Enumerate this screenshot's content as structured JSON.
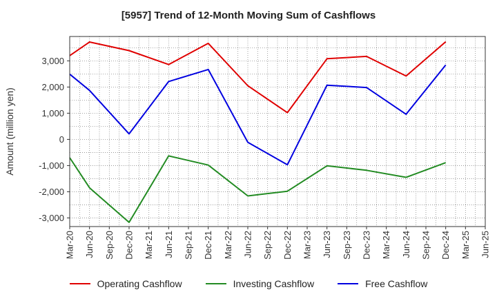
{
  "chart_data": {
    "type": "line",
    "title": "[5957]  Trend of 12-Month Moving Sum of Cashflows",
    "ylabel": "Amount (million yen)",
    "xlabel": "",
    "x": [
      "Mar-20",
      "Jun-20",
      "Sep-20",
      "Dec-20",
      "Mar-21",
      "Jun-21",
      "Sep-21",
      "Dec-21",
      "Mar-22",
      "Jun-22",
      "Sep-22",
      "Dec-22",
      "Mar-23",
      "Jun-23",
      "Sep-23",
      "Dec-23",
      "Mar-24",
      "Jun-24",
      "Sep-24",
      "Dec-24",
      "Mar-25",
      "Jun-25"
    ],
    "yticks": [
      3000,
      2000,
      1000,
      0,
      -1000,
      -2000,
      -3000
    ],
    "ytick_labels": [
      "3,000",
      "2,000",
      "1,000",
      "0",
      "-1,000",
      "-2,000",
      "-3,000"
    ],
    "ylim": [
      -3330,
      3930
    ],
    "grid": true,
    "legend_position": "bottom",
    "series": [
      {
        "name": "Operating Cashflow",
        "color": "#e00000",
        "values": [
          3200,
          3720,
          null,
          3390,
          null,
          2860,
          null,
          3670,
          null,
          2050,
          null,
          1020,
          null,
          3080,
          null,
          3170,
          null,
          2420,
          null,
          3730,
          null,
          null
        ]
      },
      {
        "name": "Investing Cashflow",
        "color": "#228b22",
        "values": [
          -700,
          -1850,
          null,
          -3170,
          null,
          -630,
          null,
          -980,
          null,
          -2160,
          null,
          -1980,
          null,
          -1010,
          null,
          -1180,
          null,
          -1450,
          null,
          -890,
          null,
          null
        ]
      },
      {
        "name": "Free Cashflow",
        "color": "#0000e0",
        "values": [
          2490,
          1870,
          null,
          210,
          null,
          2210,
          null,
          2670,
          null,
          -110,
          null,
          -970,
          null,
          2070,
          null,
          1980,
          null,
          960,
          null,
          2840,
          null,
          null
        ]
      }
    ]
  }
}
